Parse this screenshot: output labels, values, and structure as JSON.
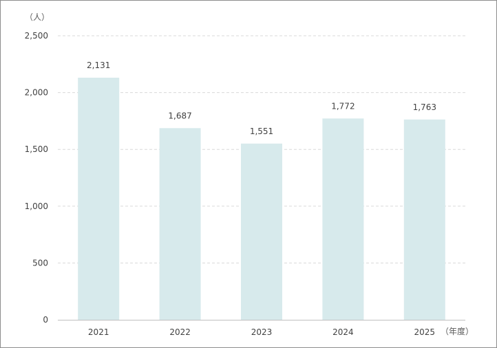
{
  "chart_data": {
    "type": "bar",
    "title": "",
    "xlabel": "",
    "ylabel": "",
    "y_unit": "（人）",
    "x_unit": "（年度）",
    "categories": [
      "2021",
      "2022",
      "2023",
      "2024",
      "2025"
    ],
    "values": [
      2131,
      1687,
      1551,
      1772,
      1763
    ],
    "value_labels": [
      "2,131",
      "1,687",
      "1,551",
      "1,772",
      "1,763"
    ],
    "ylim": [
      0,
      2500
    ],
    "yticks": [
      0,
      500,
      1000,
      1500,
      2000,
      2500
    ],
    "ytick_labels": [
      "0",
      "500",
      "1,000",
      "1,500",
      "2,000",
      "2,500"
    ],
    "grid": true,
    "legend": "none",
    "colors": {
      "bar": "#d7eaec",
      "grid": "#d9d9d9",
      "axis": "#bfbfbf",
      "border": "#8c8c8c"
    }
  }
}
